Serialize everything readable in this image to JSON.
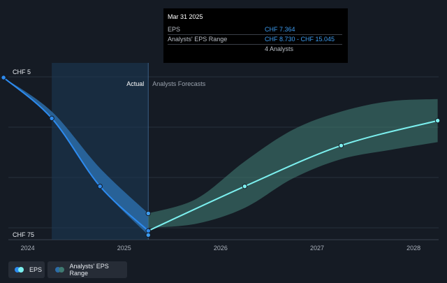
{
  "tooltip": {
    "date": "Mar 31 2025",
    "rows": [
      {
        "label": "EPS",
        "value": "CHF 7.364"
      },
      {
        "label": "Analysts' EPS Range",
        "value": "CHF 8.730 - CHF 15.045"
      },
      {
        "label": "",
        "value": "4 Analysts"
      }
    ]
  },
  "labels": {
    "actual": "Actual",
    "forecasts": "Analysts Forecasts"
  },
  "legend": {
    "eps": "EPS",
    "range": "Analysts' EPS Range"
  },
  "colors": {
    "background": "#151b24",
    "actual_line": "#2d8bf0",
    "actual_band": "#2c6ca8",
    "forecast_line": "#7cf0ef",
    "forecast_band": "#3f7a72",
    "highlight_region": "#1b3a57"
  },
  "chart_data": {
    "type": "line",
    "x_axis": {
      "ticks": [
        "2024",
        "2025",
        "2026",
        "2027",
        "2028"
      ],
      "range": [
        2023.8,
        2028.26
      ]
    },
    "y_axis": {
      "ticks": [
        "CHF 5",
        "CHF 75"
      ],
      "range": [
        5,
        75
      ]
    },
    "grid": true,
    "legend_position": "bottom-left",
    "actual_period": [
      2024.25,
      2025.25
    ],
    "series": [
      {
        "name": "EPS",
        "kind": "actual",
        "points": [
          {
            "x": 2023.75,
            "y": 75
          },
          {
            "x": 2024.25,
            "y": 57
          },
          {
            "x": 2024.75,
            "y": 27
          },
          {
            "x": 2025.25,
            "y": 7.364
          }
        ]
      },
      {
        "name": "EPS",
        "kind": "forecast",
        "points": [
          {
            "x": 2025.25,
            "y": 7.364
          },
          {
            "x": 2026.25,
            "y": 27
          },
          {
            "x": 2027.25,
            "y": 45
          },
          {
            "x": 2028.25,
            "y": 56
          }
        ]
      },
      {
        "name": "Analysts' EPS Range",
        "kind": "actual_range",
        "x": [
          2023.75,
          2024.25,
          2024.75,
          2025.25
        ],
        "low": [
          75,
          57,
          27,
          5.5
        ],
        "high": [
          75,
          60,
          35,
          15.045
        ]
      },
      {
        "name": "Analysts' EPS Range",
        "kind": "forecast_range",
        "x": [
          2025.25,
          2025.75,
          2026.25,
          2026.75,
          2027.25,
          2027.75,
          2028.25
        ],
        "low": [
          8.73,
          10.5,
          17.5,
          30.5,
          39,
          43,
          46.5
        ],
        "high": [
          15.045,
          21.5,
          38,
          52,
          60,
          64.5,
          65.5
        ]
      }
    ],
    "highlight_point": {
      "x": 2025.25,
      "y": 7.364
    }
  }
}
